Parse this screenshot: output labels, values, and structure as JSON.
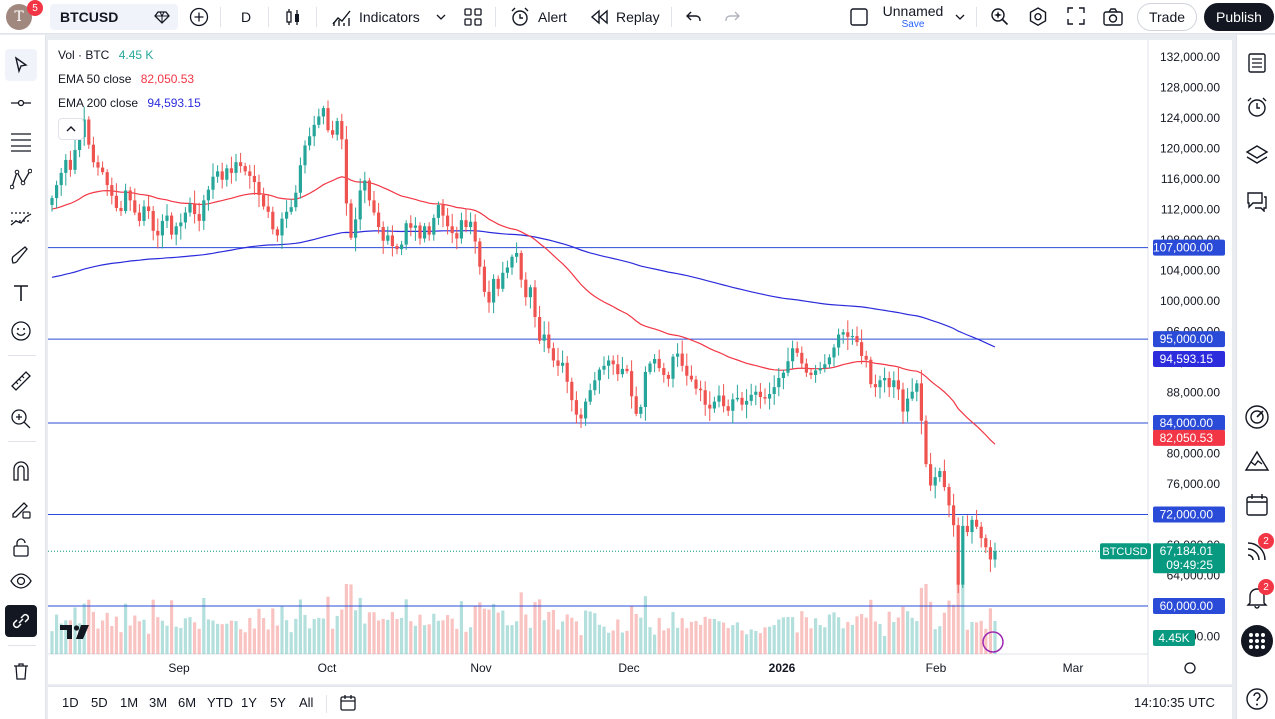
{
  "header": {
    "avatar_letter": "T",
    "avatar_badge": "5",
    "symbol": "BTCUSD",
    "interval": "D",
    "indicators_label": "Indicators",
    "alert_label": "Alert",
    "replay_label": "Replay",
    "layout_name": "Unnamed",
    "layout_save": "Save",
    "trade_label": "Trade",
    "publish_label": "Publish"
  },
  "legend": {
    "vol_label": "Vol · BTC",
    "vol_value": "4.45 K",
    "ema50_label": "EMA 50 close",
    "ema50_value": "82,050.53",
    "ema200_label": "EMA 200 close",
    "ema200_value": "94,593.15"
  },
  "colors": {
    "up": "#26a69a",
    "down": "#ef5350",
    "ema50": "#f23645",
    "ema200": "#2c2cdd",
    "hline": "#2a4bd7",
    "price_tag": "#089981"
  },
  "price_axis": {
    "ticks": [
      "132,000.00",
      "128,000.00",
      "124,000.00",
      "120,000.00",
      "116,000.00",
      "112,000.00",
      "108,000.00",
      "104,000.00",
      "100,000.00",
      "96,000.00",
      "92,000.00",
      "88,000.00",
      "84,000.00",
      "80,000.00",
      "76,000.00",
      "72,000.00",
      "68,000.00",
      "64,000.00",
      "60,000.00",
      "56,000.00"
    ],
    "hline_labels": [
      "107,000.00",
      "95,000.00",
      "84,000.00",
      "72,000.00",
      "60,000.00"
    ],
    "ema200_tag": "94,593.15",
    "ema50_tag": "82,050.53",
    "symbol_tag": "BTCUSD",
    "last_price": "67,184.01",
    "countdown": "09:49:25",
    "volume_tag": "4.45K"
  },
  "time_axis": [
    "Sep",
    "Oct",
    "Nov",
    "Dec",
    "2026",
    "Feb",
    "Mar"
  ],
  "ranges": [
    "1D",
    "5D",
    "1M",
    "3M",
    "6M",
    "YTD",
    "1Y",
    "5Y",
    "All"
  ],
  "clock": "14:10:35 UTC",
  "right_badges": {
    "feed": "2",
    "alerts": "2"
  },
  "chart_data": {
    "type": "candlestick",
    "symbol": "BTCUSD",
    "interval": "D",
    "ylim": [
      56000,
      134000
    ],
    "horizontal_lines": [
      107000,
      95000,
      84000,
      72000,
      60000
    ],
    "last_price": 67184.01,
    "closes": [
      113500,
      115200,
      116800,
      118500,
      117200,
      119800,
      121500,
      123800,
      120500,
      118200,
      117500,
      116900,
      115200,
      113800,
      112200,
      111800,
      114500,
      113200,
      111600,
      110500,
      112400,
      111800,
      109200,
      108600,
      110500,
      111200,
      108700,
      109800,
      110300,
      111600,
      112800,
      111400,
      110500,
      113200,
      114600,
      116300,
      117000,
      115900,
      117400,
      116800,
      118200,
      117700,
      117000,
      116400,
      115600,
      113900,
      112400,
      111700,
      109400,
      108600,
      110800,
      111700,
      112300,
      114200,
      117800,
      120400,
      121600,
      123100,
      124200,
      125300,
      122400,
      121800,
      123600,
      121200,
      112800,
      108300,
      110700,
      114500,
      115800,
      113200,
      111600,
      109700,
      107900,
      108600,
      107200,
      106800,
      107400,
      110200,
      109600,
      109900,
      108200,
      109800,
      108700,
      110900,
      112600,
      111200,
      109800,
      108900,
      108200,
      110600,
      109700,
      110400,
      107800,
      104500,
      101200,
      99800,
      102900,
      101600,
      103700,
      104400,
      105800,
      106300,
      102800,
      100500,
      101800,
      97900,
      94800,
      95600,
      93800,
      92200,
      91500,
      91900,
      89400,
      87000,
      85100,
      84600,
      86800,
      88300,
      89600,
      91000,
      91500,
      92200,
      91700,
      90400,
      91100,
      90800,
      87500,
      85200,
      86100,
      90700,
      91800,
      92400,
      91200,
      90300,
      89800,
      92700,
      93100,
      91500,
      90200,
      89700,
      88500,
      88300,
      86400,
      85900,
      86800,
      87600,
      86200,
      85600,
      87100,
      87300,
      86400,
      86900,
      87700,
      88100,
      87400,
      87200,
      87800,
      88700,
      89900,
      90600,
      92100,
      93800,
      93200,
      91800,
      90600,
      90300,
      90900,
      91200,
      91700,
      92600,
      93900,
      95600,
      95900,
      95300,
      95400,
      94600,
      92800,
      92300,
      89100,
      88700,
      89600,
      89900,
      88700,
      89600,
      88400,
      85500,
      87200,
      88100,
      89200,
      84300,
      78600,
      75800,
      76900,
      77700,
      75600,
      73200,
      70600,
      62800,
      70500,
      69700,
      71300,
      70400,
      68900,
      67700,
      66100,
      67184
    ]
  }
}
